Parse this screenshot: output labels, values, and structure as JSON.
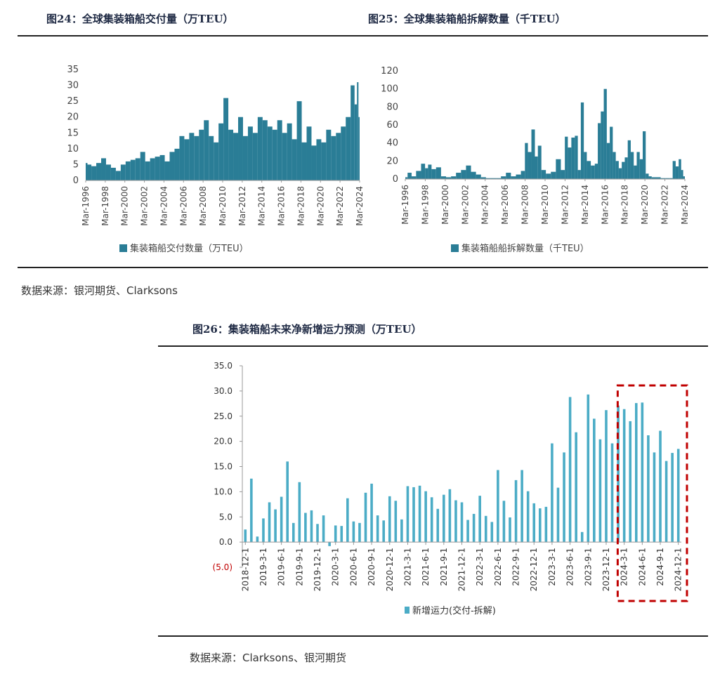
{
  "colors": {
    "bar_primary": "#2a7d96",
    "bar_secondary": "#4bacc6",
    "highlight": "#c00000",
    "negative_label": "#c00000"
  },
  "top_source": "数据来源：银河期货、Clarksons",
  "bottom_source": "数据来源：Clarksons、银河期货",
  "chart_data": [
    {
      "type": "area",
      "title": "图24：全球集装箱船交付量（万TEU）",
      "legend": "集装箱船交付数量（万TEU）",
      "legend_position": "bottom",
      "grid": false,
      "ylim": [
        0,
        35
      ],
      "yticks": [
        "0",
        "5",
        "10",
        "15",
        "20",
        "25",
        "30",
        "35"
      ],
      "xlim": [
        1996.17,
        2024.17
      ],
      "xtick_labels": [
        "Mar-1996",
        "Mar-1998",
        "Mar-2000",
        "Mar-2002",
        "Mar-2004",
        "Mar-2006",
        "Mar-2008",
        "Mar-2010",
        "Mar-2012",
        "Mar-2014",
        "Mar-2016",
        "Mar-2018",
        "Mar-2020",
        "Mar-2022",
        "Mar-2024"
      ],
      "x": [
        1996.2,
        1996.5,
        1997.0,
        1997.5,
        1998.0,
        1998.5,
        1999.0,
        1999.5,
        2000.0,
        2000.5,
        2001.0,
        2001.5,
        2002.0,
        2002.5,
        2003.0,
        2003.5,
        2004.0,
        2004.5,
        2005.0,
        2005.5,
        2006.0,
        2006.5,
        2007.0,
        2007.5,
        2008.0,
        2008.5,
        2009.0,
        2009.5,
        2010.0,
        2010.5,
        2011.0,
        2011.5,
        2012.0,
        2012.5,
        2013.0,
        2013.5,
        2014.0,
        2014.5,
        2015.0,
        2015.5,
        2016.0,
        2016.5,
        2017.0,
        2017.5,
        2018.0,
        2018.5,
        2019.0,
        2019.5,
        2020.0,
        2020.5,
        2021.0,
        2021.5,
        2022.0,
        2022.5,
        2023.0,
        2023.5,
        2023.8,
        2024.0,
        2024.1
      ],
      "values": [
        5.5,
        5,
        4.5,
        5.5,
        7,
        5,
        4,
        3,
        5,
        6,
        6.5,
        7,
        9,
        6,
        7,
        7.5,
        8,
        6,
        9,
        10,
        14,
        13,
        15,
        14,
        16,
        19,
        14,
        12,
        18,
        26,
        16,
        15,
        20,
        14,
        17,
        15,
        20,
        19,
        17,
        16,
        19,
        15,
        18,
        13,
        25,
        12,
        17,
        11,
        13,
        12,
        16,
        14,
        15,
        17,
        20,
        30,
        24,
        31,
        20
      ]
    },
    {
      "type": "area",
      "title": "图25：全球集装箱船拆解数量（千TEU）",
      "legend": "集装箱船船拆解数量（千TEU）",
      "legend_position": "bottom",
      "grid": false,
      "ylim": [
        0,
        120
      ],
      "yticks": [
        "0",
        "20",
        "40",
        "60",
        "80",
        "100",
        "120"
      ],
      "xlim": [
        1996.17,
        2024.17
      ],
      "xtick_labels": [
        "Mar-1996",
        "Mar-1998",
        "Mar-2000",
        "Mar-2002",
        "Mar-2004",
        "Mar-2006",
        "Mar-2008",
        "Mar-2010",
        "Mar-2012",
        "Mar-2014",
        "Mar-2016",
        "Mar-2018",
        "Mar-2020",
        "Mar-2022",
        "Mar-2024"
      ],
      "x": [
        1996.2,
        1996.6,
        1997.0,
        1997.5,
        1998.0,
        1998.3,
        1998.6,
        1999.0,
        1999.5,
        2000.0,
        2000.5,
        2001.0,
        2001.5,
        2002.0,
        2002.5,
        2003.0,
        2003.5,
        2004.0,
        2004.5,
        2005.0,
        2005.5,
        2006.0,
        2006.5,
        2007.0,
        2007.5,
        2008.0,
        2008.3,
        2008.6,
        2009.0,
        2009.3,
        2009.6,
        2010.0,
        2010.5,
        2011.0,
        2011.5,
        2012.0,
        2012.3,
        2012.6,
        2013.0,
        2013.3,
        2013.6,
        2013.9,
        2014.2,
        2014.5,
        2015.0,
        2015.3,
        2015.6,
        2015.9,
        2016.2,
        2016.5,
        2016.8,
        2017.1,
        2017.4,
        2017.7,
        2018.0,
        2018.3,
        2018.6,
        2018.9,
        2019.2,
        2019.5,
        2019.8,
        2020.1,
        2020.4,
        2020.7,
        2021.0,
        2021.5,
        2022.0,
        2022.5,
        2022.8,
        2023.1,
        2023.4,
        2023.7,
        2023.9,
        2024.1
      ],
      "values": [
        2,
        7,
        3,
        9,
        17,
        12,
        16,
        11,
        13,
        3,
        2,
        3,
        7,
        10,
        15,
        8,
        5,
        2,
        1,
        1,
        1,
        3,
        7,
        3,
        5,
        9,
        40,
        30,
        55,
        25,
        37,
        10,
        6,
        8,
        22,
        10,
        47,
        35,
        46,
        48,
        10,
        85,
        30,
        20,
        15,
        17,
        62,
        75,
        100,
        40,
        58,
        30,
        20,
        12,
        19,
        24,
        43,
        30,
        15,
        30,
        22,
        53,
        6,
        3,
        2,
        2,
        1,
        1,
        1,
        20,
        14,
        22,
        10,
        3
      ]
    },
    {
      "type": "bar",
      "title": "图26：集装箱船未来净新增运力预测（万TEU）",
      "legend": "新增运力(交付-拆解)",
      "legend_position": "bottom",
      "grid": false,
      "ylim": [
        -5,
        35
      ],
      "yticks": [
        "(5.0)",
        "0.0",
        "5.0",
        "10.0",
        "15.0",
        "20.0",
        "25.0",
        "30.0",
        "35.0"
      ],
      "xtick_labels": [
        "2018-12-1",
        "2019-3-1",
        "2019-6-1",
        "2019-9-1",
        "2019-12-1",
        "2020-3-1",
        "2020-6-1",
        "2020-9-1",
        "2020-12-1",
        "2021-3-1",
        "2021-6-1",
        "2021-9-1",
        "2021-12-1",
        "2022-3-1",
        "2022-6-1",
        "2022-9-1",
        "2022-12-1",
        "2023-3-1",
        "2023-6-1",
        "2023-9-1",
        "2023-12-1",
        "2024-3-1",
        "2024-6-1",
        "2024-9-1",
        "2024-12-1"
      ],
      "highlight_from_index": 63,
      "values": [
        2.5,
        12.6,
        1.1,
        4.7,
        7.9,
        6.5,
        9.0,
        16.0,
        3.8,
        11.9,
        5.8,
        6.3,
        3.6,
        5.3,
        -0.8,
        3.3,
        3.2,
        8.7,
        4.1,
        3.8,
        9.8,
        11.6,
        5.3,
        4.3,
        9.1,
        8.2,
        4.5,
        11.1,
        10.9,
        11.2,
        10.1,
        8.9,
        6.6,
        9.4,
        10.5,
        8.3,
        7.9,
        4.4,
        5.6,
        9.2,
        5.2,
        4.0,
        14.3,
        8.2,
        4.9,
        12.3,
        14.3,
        10.1,
        7.7,
        6.7,
        7.0,
        19.6,
        10.8,
        17.8,
        28.8,
        21.8,
        2.0,
        29.3,
        24.5,
        20.4,
        26.2,
        19.6,
        27.1,
        26.4,
        24.0,
        27.6,
        27.7,
        21.2,
        17.8,
        22.1,
        16.1,
        17.7,
        18.5
      ]
    }
  ]
}
